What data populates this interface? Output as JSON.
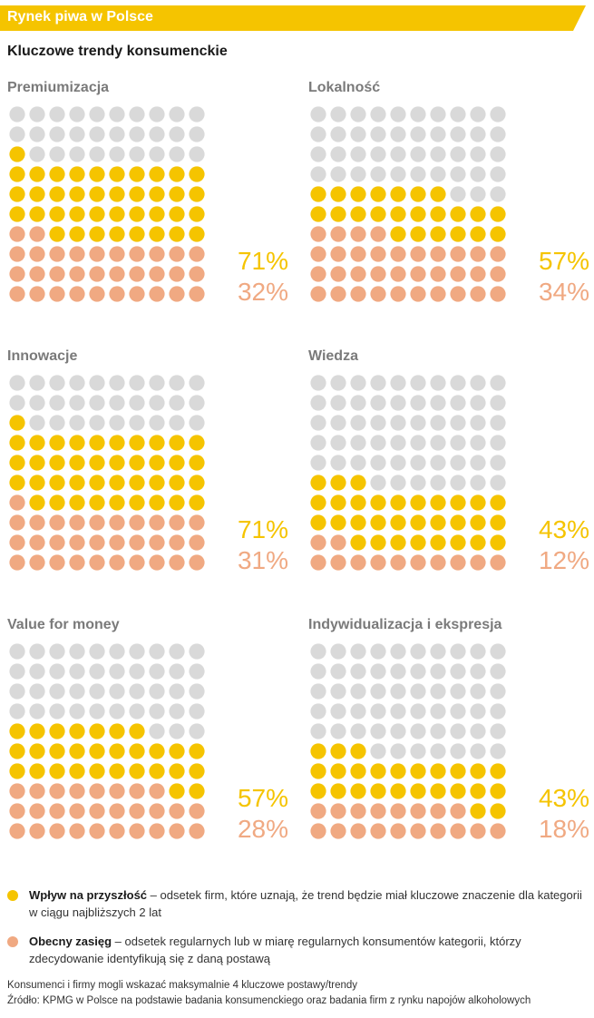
{
  "header": {
    "title": "Rynek piwa w Polsce"
  },
  "subtitle": "Kluczowe trendy konsumenckie",
  "colors": {
    "future": "#f5c400",
    "current": "#f0a982",
    "neutral": "#d9d9d9",
    "header": "#f5c400"
  },
  "chart_data": [
    {
      "type": "waffle",
      "title": "Premiumizacja",
      "series": [
        {
          "name": "Wpływ na przyszłość",
          "value": 71
        },
        {
          "name": "Obecny zasięg",
          "value": 32
        }
      ]
    },
    {
      "type": "waffle",
      "title": "Lokalność",
      "series": [
        {
          "name": "Wpływ na przyszłość",
          "value": 57
        },
        {
          "name": "Obecny zasięg",
          "value": 34
        }
      ]
    },
    {
      "type": "waffle",
      "title": "Innowacje",
      "series": [
        {
          "name": "Wpływ na przyszłość",
          "value": 71
        },
        {
          "name": "Obecny zasięg",
          "value": 31
        }
      ]
    },
    {
      "type": "waffle",
      "title": "Wiedza",
      "series": [
        {
          "name": "Wpływ na przyszłość",
          "value": 43
        },
        {
          "name": "Obecny zasięg",
          "value": 12
        }
      ]
    },
    {
      "type": "waffle",
      "title": "Value for money",
      "series": [
        {
          "name": "Wpływ na przyszłość",
          "value": 57
        },
        {
          "name": "Obecny zasięg",
          "value": 28
        }
      ]
    },
    {
      "type": "waffle",
      "title": "Indywidualizacja i ekspresja",
      "series": [
        {
          "name": "Wpływ na przyszłość",
          "value": 43
        },
        {
          "name": "Obecny zasięg",
          "value": 18
        }
      ]
    }
  ],
  "panels": [
    {
      "title": "Premiumizacja",
      "future_label": "71%",
      "current_label": "32%"
    },
    {
      "title": "Lokalność",
      "future_label": "57%",
      "current_label": "34%"
    },
    {
      "title": "Innowacje",
      "future_label": "71%",
      "current_label": "31%"
    },
    {
      "title": "Wiedza",
      "future_label": "43%",
      "current_label": "12%"
    },
    {
      "title": "Value for money",
      "future_label": "57%",
      "current_label": "28%"
    },
    {
      "title": "Indywidualizacja i ekspresja",
      "future_label": "43%",
      "current_label": "18%"
    }
  ],
  "legend": {
    "future": {
      "term": "Wpływ na przyszłość",
      "text": " – odsetek firm, które uznają, że trend będzie miał kluczowe znaczenie dla kategorii w ciągu najbliższych 2 lat"
    },
    "current": {
      "term": "Obecny zasięg",
      "text": " – odsetek regularnych lub w miarę regularnych konsumentów kategorii, którzy zdecydowanie identyfikują się z daną postawą"
    }
  },
  "notes": {
    "line1": "Konsumenci i firmy mogli wskazać maksymalnie 4 kluczowe postawy/trendy",
    "line2": "Źródło: KPMG w Polsce na podstawie badania konsumenckiego oraz badania firm z rynku napojów alkoholowych"
  }
}
